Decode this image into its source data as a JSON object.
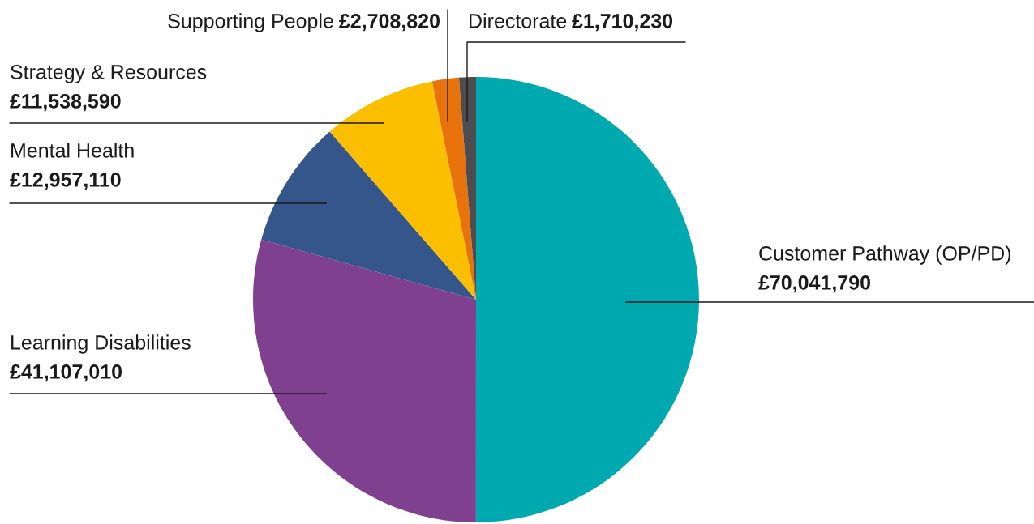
{
  "chart_data": {
    "type": "pie",
    "categories": [
      "Customer Pathway (OP/PD)",
      "Learning Disabilities",
      "Mental Health",
      "Strategy & Resources",
      "Supporting People",
      "Directorate"
    ],
    "values": [
      70041790,
      41107010,
      12957110,
      11538590,
      2708820,
      1710230
    ],
    "colors": [
      "#00a8b0",
      "#7f418f",
      "#34568b",
      "#fbbf00",
      "#e8730c",
      "#4d4d4f"
    ],
    "value_labels": [
      "£70,041,790",
      "£41,107,010",
      "£12,957,110",
      "£11,538,590",
      "£2,708,820",
      "£1,710,230"
    ]
  }
}
